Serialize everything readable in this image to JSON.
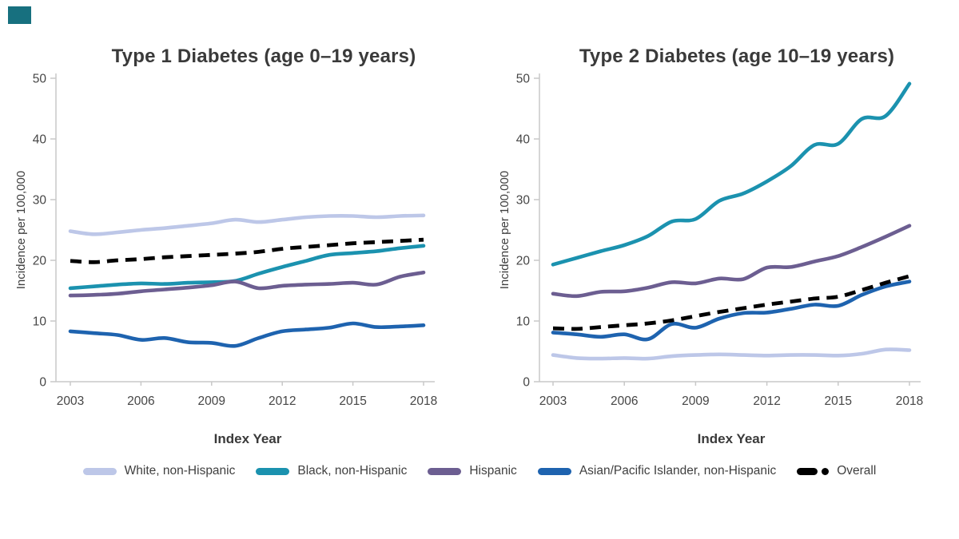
{
  "page": {
    "background": "#ffffff"
  },
  "brand_mark": {
    "color": "#17707f"
  },
  "text_colors": {
    "title": "#3a3a3a",
    "labels": "#3f3f3f",
    "ticks": "#464646",
    "axis_line": "#c8c8c8"
  },
  "legend": {
    "position": "bottom",
    "items": [
      {
        "label": "White, non-Hispanic",
        "color": "#bdc7e8",
        "swatch": "line"
      },
      {
        "label": "Black, non-Hispanic",
        "color": "#1b92af",
        "swatch": "line"
      },
      {
        "label": "Hispanic",
        "color": "#6c5e91",
        "swatch": "line"
      },
      {
        "label": "Asian/Pacific Islander, non-Hispanic",
        "color": "#1e63af",
        "swatch": "line"
      },
      {
        "label": "Overall",
        "color": "#000000",
        "swatch": "dash-dot"
      }
    ]
  },
  "chart_data": [
    {
      "type": "line",
      "title": "Type 1 Diabetes (age 0–19 years)",
      "xlabel": "Index Year",
      "ylabel": "Incidence per 100,000",
      "x": [
        2003,
        2004,
        2005,
        2006,
        2007,
        2008,
        2009,
        2010,
        2011,
        2012,
        2013,
        2014,
        2015,
        2016,
        2017,
        2018
      ],
      "xticks": [
        2003,
        2006,
        2009,
        2012,
        2015,
        2018
      ],
      "ylim": [
        0,
        50
      ],
      "yticks": [
        0,
        10,
        20,
        30,
        40,
        50
      ],
      "grid": false,
      "series": [
        {
          "name": "White, non-Hispanic",
          "color": "#bdc7e8",
          "dash": false,
          "values": [
            24.8,
            24.3,
            24.6,
            25.0,
            25.3,
            25.7,
            26.1,
            26.7,
            26.3,
            26.7,
            27.1,
            27.3,
            27.3,
            27.1,
            27.3,
            27.4
          ]
        },
        {
          "name": "Black, non-Hispanic",
          "color": "#1b92af",
          "dash": false,
          "values": [
            15.4,
            15.7,
            16.0,
            16.2,
            16.1,
            16.3,
            16.4,
            16.6,
            17.8,
            18.9,
            19.9,
            20.9,
            21.2,
            21.5,
            22.0,
            22.4
          ]
        },
        {
          "name": "Hispanic",
          "color": "#6c5e91",
          "dash": false,
          "values": [
            14.2,
            14.3,
            14.5,
            14.9,
            15.2,
            15.5,
            15.9,
            16.5,
            15.4,
            15.8,
            16.0,
            16.1,
            16.3,
            16.0,
            17.3,
            18.0
          ]
        },
        {
          "name": "Asian/Pacific Islander, non-Hispanic",
          "color": "#1e63af",
          "dash": false,
          "values": [
            8.3,
            8.0,
            7.7,
            6.9,
            7.2,
            6.5,
            6.4,
            5.9,
            7.2,
            8.3,
            8.6,
            8.9,
            9.6,
            9.0,
            9.1,
            9.3
          ]
        },
        {
          "name": "Overall",
          "color": "#000000",
          "dash": true,
          "values": [
            19.9,
            19.7,
            20.0,
            20.2,
            20.5,
            20.7,
            20.9,
            21.1,
            21.4,
            21.9,
            22.2,
            22.5,
            22.8,
            23.0,
            23.2,
            23.4
          ]
        }
      ]
    },
    {
      "type": "line",
      "title": "Type 2 Diabetes (age 10–19 years)",
      "xlabel": "Index Year",
      "ylabel": "Incidence per 100,000",
      "x": [
        2003,
        2004,
        2005,
        2006,
        2007,
        2008,
        2009,
        2010,
        2011,
        2012,
        2013,
        2014,
        2015,
        2016,
        2017,
        2018
      ],
      "xticks": [
        2003,
        2006,
        2009,
        2012,
        2015,
        2018
      ],
      "ylim": [
        0,
        50
      ],
      "yticks": [
        0,
        10,
        20,
        30,
        40,
        50
      ],
      "grid": false,
      "series": [
        {
          "name": "White, non-Hispanic",
          "color": "#bdc7e8",
          "dash": false,
          "values": [
            4.4,
            3.9,
            3.8,
            3.9,
            3.8,
            4.2,
            4.4,
            4.5,
            4.4,
            4.3,
            4.4,
            4.4,
            4.3,
            4.6,
            5.3,
            5.2
          ]
        },
        {
          "name": "Black, non-Hispanic",
          "color": "#1b92af",
          "dash": false,
          "values": [
            19.3,
            20.4,
            21.5,
            22.5,
            24.0,
            26.4,
            26.8,
            29.8,
            31.0,
            33.0,
            35.5,
            39.0,
            39.2,
            43.3,
            43.8,
            49.1
          ]
        },
        {
          "name": "Hispanic",
          "color": "#6c5e91",
          "dash": false,
          "values": [
            14.5,
            14.1,
            14.8,
            14.9,
            15.5,
            16.4,
            16.2,
            17.0,
            16.9,
            18.8,
            18.9,
            19.8,
            20.7,
            22.2,
            23.9,
            25.7
          ]
        },
        {
          "name": "Asian/Pacific Islander, non-Hispanic",
          "color": "#1e63af",
          "dash": false,
          "values": [
            8.1,
            7.8,
            7.4,
            7.8,
            7.0,
            9.5,
            8.9,
            10.4,
            11.3,
            11.4,
            12.0,
            12.7,
            12.5,
            14.3,
            15.7,
            16.5
          ]
        },
        {
          "name": "Overall",
          "color": "#000000",
          "dash": true,
          "values": [
            8.8,
            8.7,
            9.0,
            9.3,
            9.6,
            10.1,
            10.8,
            11.5,
            12.1,
            12.7,
            13.2,
            13.7,
            14.0,
            15.1,
            16.3,
            17.4
          ]
        }
      ]
    }
  ]
}
